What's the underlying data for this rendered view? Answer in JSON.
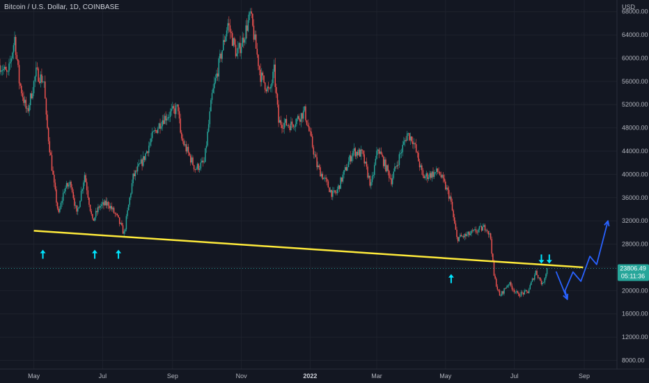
{
  "header": {
    "title": "Bitcoin / U.S. Dollar, 1D, COINBASE"
  },
  "colors": {
    "background": "#131722",
    "grid": "#1e222d",
    "up": "#26a69a",
    "down": "#ef5350",
    "trendline": "#ffeb3b",
    "arrows": "#00e5ff",
    "projection": "#2962ff",
    "price_tag": "#26a69a"
  },
  "chart_data": {
    "type": "candlestick",
    "symbol": "Bitcoin / U.S. Dollar",
    "interval": "1D",
    "exchange": "COINBASE",
    "y_unit": "USD",
    "ylim": [
      6500,
      70000
    ],
    "y_ticks": [
      8000,
      12000,
      16000,
      20000,
      24000,
      28000,
      32000,
      36000,
      40000,
      44000,
      48000,
      52000,
      56000,
      60000,
      64000,
      68000
    ],
    "y_tick_labels": [
      "8000.00",
      "12000.00",
      "16000.00",
      "20000.00",
      "24000.00",
      "28000.00",
      "32000.00",
      "36000.00",
      "40000.00",
      "44000.00",
      "48000.00",
      "52000.00",
      "56000.00",
      "60000.00",
      "64000.00",
      "68000.00"
    ],
    "x_range": [
      "2021-04-01",
      "2022-09-30"
    ],
    "x_ticks": [
      {
        "date": "2021-05-01",
        "label": "May"
      },
      {
        "date": "2021-07-01",
        "label": "Jul"
      },
      {
        "date": "2021-09-01",
        "label": "Sep"
      },
      {
        "date": "2021-11-01",
        "label": "Nov"
      },
      {
        "date": "2022-01-01",
        "label": "2022",
        "bold": true
      },
      {
        "date": "2022-03-01",
        "label": "Mar"
      },
      {
        "date": "2022-05-01",
        "label": "May"
      },
      {
        "date": "2022-07-01",
        "label": "Jul"
      },
      {
        "date": "2022-09-01",
        "label": "Sep"
      }
    ],
    "price_path": [
      [
        "2021-04-01",
        58800
      ],
      [
        "2021-04-08",
        57000
      ],
      [
        "2021-04-14",
        63500
      ],
      [
        "2021-04-18",
        56000
      ],
      [
        "2021-04-25",
        50500
      ],
      [
        "2021-05-03",
        57500
      ],
      [
        "2021-05-10",
        56000
      ],
      [
        "2021-05-12",
        49500
      ],
      [
        "2021-05-19",
        38000
      ],
      [
        "2021-05-23",
        33000
      ],
      [
        "2021-05-28",
        37500
      ],
      [
        "2021-06-03",
        38500
      ],
      [
        "2021-06-08",
        33000
      ],
      [
        "2021-06-15",
        40000
      ],
      [
        "2021-06-22",
        31800
      ],
      [
        "2021-06-28",
        34500
      ],
      [
        "2021-07-06",
        35000
      ],
      [
        "2021-07-14",
        32500
      ],
      [
        "2021-07-20",
        29800
      ],
      [
        "2021-07-28",
        39500
      ],
      [
        "2021-08-06",
        42500
      ],
      [
        "2021-08-14",
        46500
      ],
      [
        "2021-08-23",
        49500
      ],
      [
        "2021-09-06",
        51500
      ],
      [
        "2021-09-08",
        46500
      ],
      [
        "2021-09-21",
        41000
      ],
      [
        "2021-09-29",
        42000
      ],
      [
        "2021-10-06",
        53500
      ],
      [
        "2021-10-15",
        61500
      ],
      [
        "2021-10-20",
        66000
      ],
      [
        "2021-10-28",
        60500
      ],
      [
        "2021-11-02",
        63000
      ],
      [
        "2021-11-09",
        67500
      ],
      [
        "2021-11-18",
        57000
      ],
      [
        "2021-11-26",
        54000
      ],
      [
        "2021-11-30",
        57800
      ],
      [
        "2021-12-04",
        49000
      ],
      [
        "2021-12-15",
        48500
      ],
      [
        "2021-12-27",
        50800
      ],
      [
        "2022-01-07",
        41500
      ],
      [
        "2022-01-21",
        36500
      ],
      [
        "2022-01-24",
        36800
      ],
      [
        "2022-02-08",
        44000
      ],
      [
        "2022-02-16",
        43500
      ],
      [
        "2022-02-24",
        38000
      ],
      [
        "2022-03-02",
        44500
      ],
      [
        "2022-03-14",
        39000
      ],
      [
        "2022-03-28",
        47000
      ],
      [
        "2022-04-02",
        46000
      ],
      [
        "2022-04-11",
        39500
      ],
      [
        "2022-04-25",
        40500
      ],
      [
        "2022-05-05",
        36000
      ],
      [
        "2022-05-11",
        29000
      ],
      [
        "2022-05-20",
        29500
      ],
      [
        "2022-06-06",
        31000
      ],
      [
        "2022-06-10",
        29000
      ],
      [
        "2022-06-13",
        22500
      ],
      [
        "2022-06-18",
        19000
      ],
      [
        "2022-06-26",
        21300
      ],
      [
        "2022-07-04",
        19300
      ],
      [
        "2022-07-13",
        19800
      ],
      [
        "2022-07-20",
        23300
      ],
      [
        "2022-07-26",
        21000
      ],
      [
        "2022-07-30",
        23800
      ]
    ],
    "annotations": {
      "trendline": [
        [
          "2021-05-01",
          30300
        ],
        [
          "2022-08-31",
          24000
        ]
      ],
      "up_arrows": [
        [
          "2021-05-09",
          26200
        ],
        [
          "2021-06-24",
          26200
        ],
        [
          "2021-07-15",
          26200
        ],
        [
          "2022-05-06",
          22000
        ]
      ],
      "down_arrows": [
        [
          "2022-07-25",
          25500
        ],
        [
          "2022-08-01",
          25500
        ]
      ],
      "projection": [
        [
          "2022-08-07",
          23300
        ],
        [
          "2022-08-17",
          18500
        ],
        [
          "2022-08-15",
          20000
        ],
        [
          "2022-08-22",
          23200
        ],
        [
          "2022-08-29",
          21600
        ],
        [
          "2022-09-06",
          25900
        ],
        [
          "2022-09-12",
          24500
        ],
        [
          "2022-09-22",
          32000
        ]
      ]
    },
    "last_price": {
      "price": 23806.49,
      "label": "23806.49",
      "countdown": "05:11:36"
    }
  }
}
